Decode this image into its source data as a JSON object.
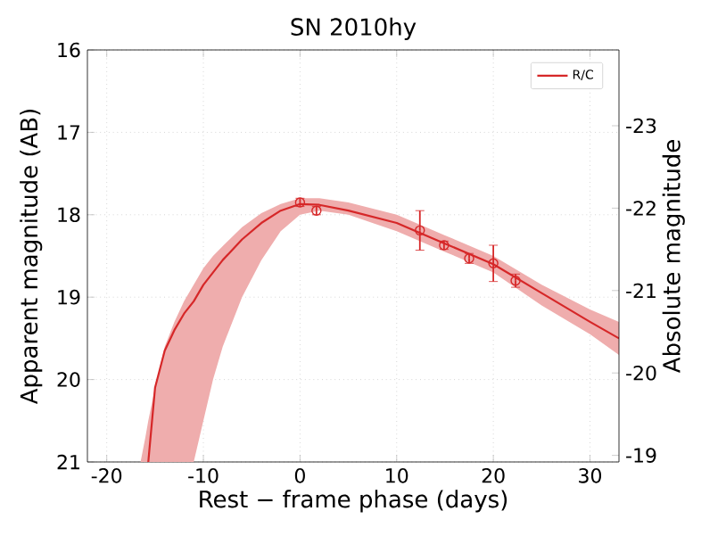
{
  "chart_data": {
    "type": "line",
    "title": "SN 2010hy",
    "xlabel": "Rest − frame phase (days)",
    "ylabel": "Apparent magnitude (AB)",
    "y2label": "Absolute magnitude",
    "xlim": [
      -22,
      33
    ],
    "xticks": [
      -20,
      -10,
      0,
      10,
      20,
      30
    ],
    "ylim": [
      21,
      16
    ],
    "yticks": [
      16,
      17,
      18,
      19,
      20,
      21
    ],
    "y2lim": [
      -18.92,
      -23.92
    ],
    "y2ticks": [
      -23,
      -22,
      -21,
      -20,
      -19
    ],
    "grid": true,
    "legend": "top right",
    "series": [
      {
        "name": "R/C",
        "color": "#d62728",
        "marker": "none",
        "line_style": "solid",
        "x": [
          -16.5,
          -16,
          -15.7,
          -15,
          -14,
          -13,
          -12,
          -11,
          -10,
          -9,
          -8,
          -6,
          -4,
          -2,
          0,
          2,
          5,
          10,
          15,
          20,
          25,
          30,
          33
        ],
        "values": [
          null,
          null,
          21,
          20.1,
          19.65,
          19.4,
          19.2,
          19.05,
          18.85,
          18.7,
          18.55,
          18.3,
          18.1,
          17.95,
          17.87,
          17.88,
          17.95,
          18.1,
          18.35,
          18.6,
          18.95,
          19.3,
          19.5
        ],
        "upper": [
          21,
          20.7,
          20.5,
          20.1,
          19.6,
          19.3,
          19.05,
          18.85,
          18.65,
          18.5,
          18.38,
          18.15,
          17.98,
          17.87,
          17.8,
          17.8,
          17.85,
          18.0,
          18.25,
          18.5,
          18.85,
          19.15,
          19.3
        ],
        "lower": [
          21,
          21,
          21,
          21,
          21,
          21,
          21,
          21,
          20.5,
          20.0,
          19.6,
          19.0,
          18.55,
          18.2,
          18.0,
          17.95,
          18.0,
          18.2,
          18.45,
          18.7,
          19.1,
          19.45,
          19.7
        ]
      },
      {
        "type": "scatter",
        "color": "#d62728",
        "marker": "circle",
        "x": [
          0,
          1.7,
          12.4,
          14.9,
          17.5,
          20.0,
          22.3
        ],
        "values": [
          17.85,
          17.95,
          18.19,
          18.37,
          18.53,
          18.59,
          18.8
        ],
        "errors": [
          0.05,
          0.05,
          0.24,
          0.05,
          0.06,
          0.22,
          0.08
        ]
      }
    ]
  }
}
